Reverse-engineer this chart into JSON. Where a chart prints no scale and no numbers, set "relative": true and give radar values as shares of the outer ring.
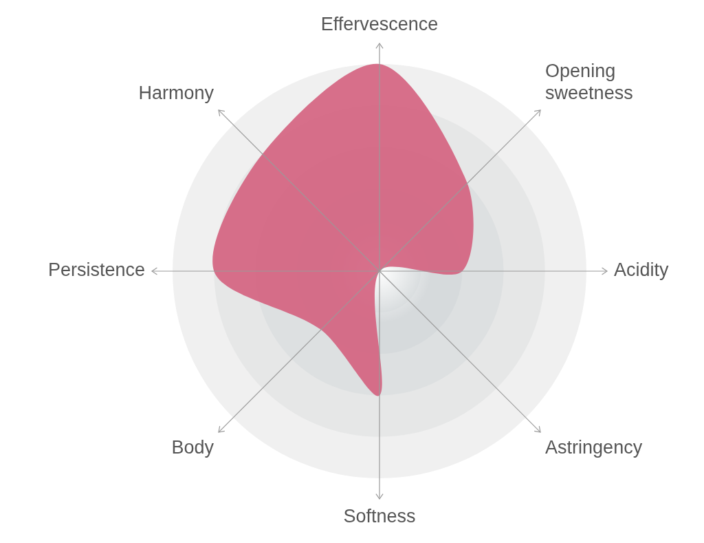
{
  "chart_data": {
    "type": "radar",
    "relative": true,
    "grid": true,
    "legend": false,
    "marker": "none",
    "categories": [
      "Effervescence",
      "Opening\nsweetness",
      "Acidity",
      "Astringency",
      "Softness",
      "Body",
      "Persistence",
      "Harmony"
    ],
    "series": [
      {
        "color": "#d4607e",
        "values": [
          1,
          0.6,
          0.4,
          0,
          0.6,
          0.4,
          0.8,
          0.8
        ]
      }
    ]
  }
}
